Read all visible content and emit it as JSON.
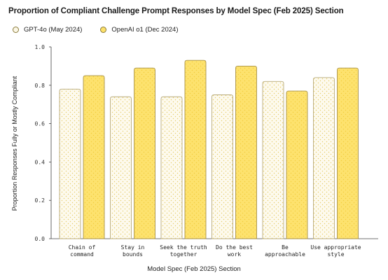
{
  "chart_data": {
    "type": "bar",
    "title": "Proportion of Compliant Challenge Prompt Responses by Model Spec (Feb 2025) Section",
    "xlabel": "Model Spec (Feb 2025) Section",
    "ylabel": "Proportion Responses Fully or Mostly Compliant",
    "ylim": [
      0,
      1.0
    ],
    "yticks": [
      "0.0",
      "0.2",
      "0.4",
      "0.6",
      "0.8",
      "1.0"
    ],
    "grid": false,
    "legend_position": "top-left",
    "categories": [
      [
        "Chain of",
        "command"
      ],
      [
        "Stay in",
        "bounds"
      ],
      [
        "Seek the truth",
        "together"
      ],
      [
        "Do the best",
        "work"
      ],
      [
        "Be",
        "approachable"
      ],
      [
        "Use appropriate",
        "style"
      ]
    ],
    "series": [
      {
        "name": "GPT-4o (May 2024)",
        "color": "#fbf7e6",
        "dot_color": "#e8cf5c",
        "values": [
          0.78,
          0.74,
          0.74,
          0.75,
          0.82,
          0.84
        ]
      },
      {
        "name": "OpenAI o1 (Dec 2024)",
        "color": "#fde16a",
        "dot_color": "#f5d04a",
        "values": [
          0.85,
          0.89,
          0.93,
          0.9,
          0.77,
          0.89
        ]
      }
    ]
  }
}
